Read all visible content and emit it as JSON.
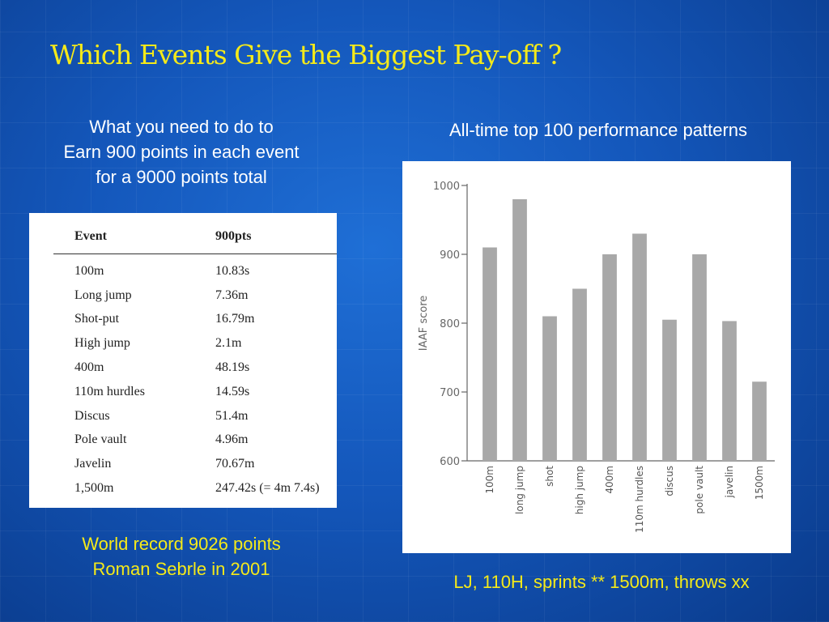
{
  "slide": {
    "title": "Which Events Give the Biggest Pay-off ?",
    "left_intro": [
      "What you need to do to",
      "Earn 900 points in each event",
      "for a 9000 points total"
    ],
    "right_intro": "All-time top 100 performance patterns",
    "record_note": [
      "World record 9026 points",
      "Roman Sebrle in 2001"
    ],
    "summary_note": "LJ, 110H, sprints ** 1500m, throws xx",
    "colors": {
      "title": "#f5ea19",
      "background": "#1457bb",
      "bar": "#a8a8a8"
    }
  },
  "table": {
    "headers": [
      "Event",
      "900pts"
    ],
    "rows": [
      [
        "100m",
        "10.83s"
      ],
      [
        "Long jump",
        "7.36m"
      ],
      [
        "Shot-put",
        "16.79m"
      ],
      [
        "High jump",
        "2.1m"
      ],
      [
        "400m",
        "48.19s"
      ],
      [
        "110m hurdles",
        "14.59s"
      ],
      [
        "Discus",
        "51.4m"
      ],
      [
        "Pole vault",
        "4.96m"
      ],
      [
        "Javelin",
        "70.67m"
      ],
      [
        "1,500m",
        "247.42s (= 4m 7.4s)"
      ]
    ]
  },
  "chart_data": {
    "type": "bar",
    "title": "",
    "ylabel": "IAAF score",
    "xlabel": "",
    "categories": [
      "100m",
      "long jump",
      "shot",
      "high jump",
      "400m",
      "110m hurdles",
      "discus",
      "pole vault",
      "javelin",
      "1500m"
    ],
    "values": [
      910,
      980,
      810,
      850,
      900,
      930,
      805,
      900,
      803,
      715
    ],
    "ylim": [
      600,
      1000
    ],
    "yticks": [
      "1000",
      "900",
      "800",
      "700",
      "600"
    ],
    "grid": false,
    "legend": "none"
  }
}
